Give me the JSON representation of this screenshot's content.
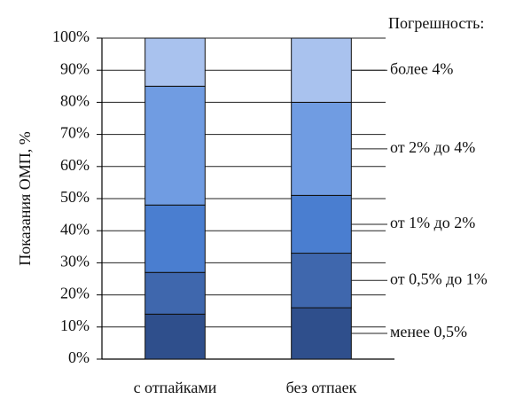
{
  "chart_data": {
    "type": "stacked_bar",
    "y_label": "Показания ОМП, %",
    "legend_title": "Погрешность:",
    "categories": [
      "с отпайками",
      "без отпаек"
    ],
    "series": [
      {
        "name": "менее 0,5%",
        "color": "#2f4f8c",
        "values": [
          14,
          16
        ]
      },
      {
        "name": "от 0,5% до 1%",
        "color": "#3f67ad",
        "values": [
          13,
          17
        ]
      },
      {
        "name": "от 1% до 2%",
        "color": "#4a7ed0",
        "values": [
          21,
          18
        ]
      },
      {
        "name": "от 2% до 4%",
        "color": "#709ce2",
        "values": [
          37,
          29
        ]
      },
      {
        "name": "более 4%",
        "color": "#a9c2ee",
        "values": [
          15,
          20
        ]
      }
    ],
    "ylim": [
      0,
      100
    ],
    "yticks": [
      {
        "value": 0,
        "label": "0%"
      },
      {
        "value": 10,
        "label": "10%"
      },
      {
        "value": 20,
        "label": "20%"
      },
      {
        "value": 30,
        "label": "30%"
      },
      {
        "value": 40,
        "label": "40%"
      },
      {
        "value": 50,
        "label": "50%"
      },
      {
        "value": 60,
        "label": "60%"
      },
      {
        "value": 70,
        "label": "70%"
      },
      {
        "value": 80,
        "label": "80%"
      },
      {
        "value": 90,
        "label": "90%"
      },
      {
        "value": 100,
        "label": "100%"
      }
    ],
    "grid": true
  }
}
